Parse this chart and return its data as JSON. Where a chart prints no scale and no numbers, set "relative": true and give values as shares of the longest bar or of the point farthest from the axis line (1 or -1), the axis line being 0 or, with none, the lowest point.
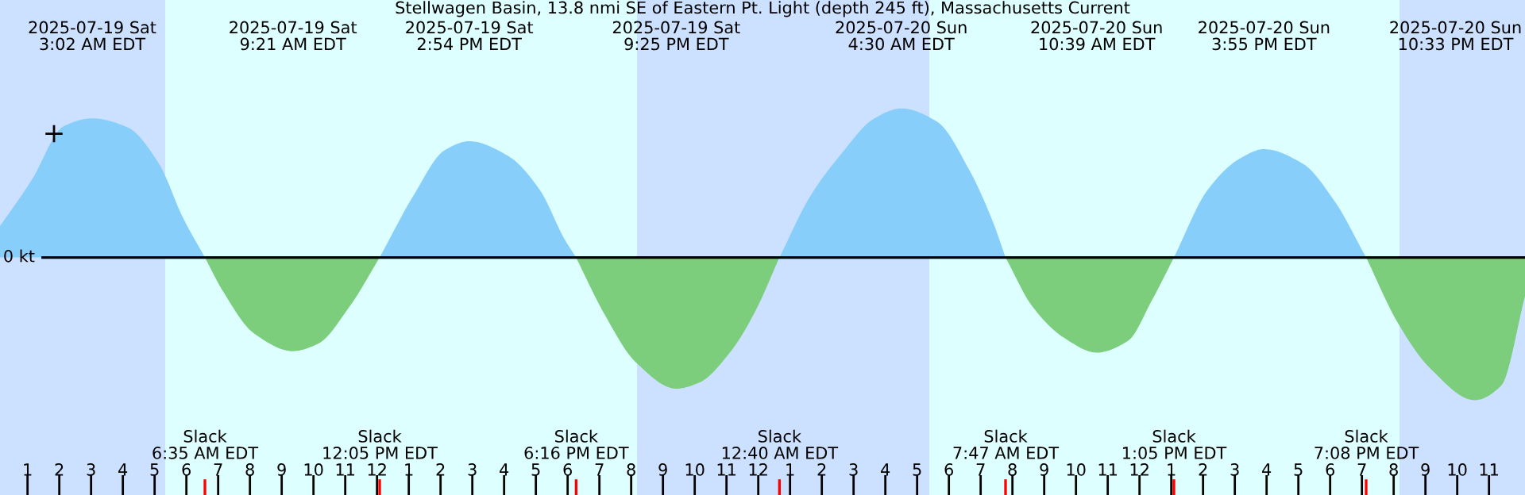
{
  "chart_data": {
    "type": "area",
    "relative": true,
    "title": "Stellwagen Basin, 13.8 nmi SE of Eastern Pt. Light (depth 245 ft), Massachusetts Current",
    "xlim": [
      "2025-07-19T00:08",
      "2025-07-21T00:08"
    ],
    "xticks": [
      {
        "value": "2025-07-19T01:00",
        "label": "1"
      },
      {
        "value": "2025-07-19T02:00",
        "label": "2"
      },
      {
        "value": "2025-07-19T03:00",
        "label": "3"
      },
      {
        "value": "2025-07-19T04:00",
        "label": "4"
      },
      {
        "value": "2025-07-19T05:00",
        "label": "5"
      },
      {
        "value": "2025-07-19T06:00",
        "label": "6"
      },
      {
        "value": "2025-07-19T07:00",
        "label": "7"
      },
      {
        "value": "2025-07-19T08:00",
        "label": "8"
      },
      {
        "value": "2025-07-19T09:00",
        "label": "9"
      },
      {
        "value": "2025-07-19T10:00",
        "label": "10"
      },
      {
        "value": "2025-07-19T11:00",
        "label": "11"
      },
      {
        "value": "2025-07-19T12:00",
        "label": "12"
      },
      {
        "value": "2025-07-19T13:00",
        "label": "1"
      },
      {
        "value": "2025-07-19T14:00",
        "label": "2"
      },
      {
        "value": "2025-07-19T15:00",
        "label": "3"
      },
      {
        "value": "2025-07-19T16:00",
        "label": "4"
      },
      {
        "value": "2025-07-19T17:00",
        "label": "5"
      },
      {
        "value": "2025-07-19T18:00",
        "label": "6"
      },
      {
        "value": "2025-07-19T19:00",
        "label": "7"
      },
      {
        "value": "2025-07-19T20:00",
        "label": "8"
      },
      {
        "value": "2025-07-19T21:00",
        "label": "9"
      },
      {
        "value": "2025-07-19T22:00",
        "label": "10"
      },
      {
        "value": "2025-07-19T23:00",
        "label": "11"
      },
      {
        "value": "2025-07-20T00:00",
        "label": "12"
      },
      {
        "value": "2025-07-20T01:00",
        "label": "1"
      },
      {
        "value": "2025-07-20T02:00",
        "label": "2"
      },
      {
        "value": "2025-07-20T03:00",
        "label": "3"
      },
      {
        "value": "2025-07-20T04:00",
        "label": "4"
      },
      {
        "value": "2025-07-20T05:00",
        "label": "5"
      },
      {
        "value": "2025-07-20T06:00",
        "label": "6"
      },
      {
        "value": "2025-07-20T07:00",
        "label": "7"
      },
      {
        "value": "2025-07-20T08:00",
        "label": "8"
      },
      {
        "value": "2025-07-20T09:00",
        "label": "9"
      },
      {
        "value": "2025-07-20T10:00",
        "label": "10"
      },
      {
        "value": "2025-07-20T11:00",
        "label": "11"
      },
      {
        "value": "2025-07-20T12:00",
        "label": "12"
      },
      {
        "value": "2025-07-20T13:00",
        "label": "1"
      },
      {
        "value": "2025-07-20T14:00",
        "label": "2"
      },
      {
        "value": "2025-07-20T15:00",
        "label": "3"
      },
      {
        "value": "2025-07-20T16:00",
        "label": "4"
      },
      {
        "value": "2025-07-20T17:00",
        "label": "5"
      },
      {
        "value": "2025-07-20T18:00",
        "label": "6"
      },
      {
        "value": "2025-07-20T19:00",
        "label": "7"
      },
      {
        "value": "2025-07-20T20:00",
        "label": "8"
      },
      {
        "value": "2025-07-20T21:00",
        "label": "9"
      },
      {
        "value": "2025-07-20T22:00",
        "label": "10"
      },
      {
        "value": "2025-07-20T23:00",
        "label": "11"
      }
    ],
    "x": [
      "2025-07-19T00:08",
      "2025-07-19T01:08",
      "2025-07-19T02:08",
      "2025-07-19T03:02",
      "2025-07-19T04:08",
      "2025-07-19T05:08",
      "2025-07-19T05:53",
      "2025-07-19T06:35",
      "2025-07-19T07:08",
      "2025-07-19T08:08",
      "2025-07-19T09:21",
      "2025-07-19T10:08",
      "2025-07-19T11:08",
      "2025-07-19T12:05",
      "2025-07-19T13:08",
      "2025-07-19T14:08",
      "2025-07-19T14:54",
      "2025-07-19T16:08",
      "2025-07-19T17:08",
      "2025-07-19T17:53",
      "2025-07-19T18:16",
      "2025-07-19T19:08",
      "2025-07-19T20:08",
      "2025-07-19T21:25",
      "2025-07-19T22:08",
      "2025-07-19T23:08",
      "2025-07-19T23:53",
      "2025-07-20T00:40",
      "2025-07-20T01:38",
      "2025-07-20T02:38",
      "2025-07-20T03:38",
      "2025-07-20T04:30",
      "2025-07-20T05:38",
      "2025-07-20T06:38",
      "2025-07-20T07:23",
      "2025-07-20T07:47",
      "2025-07-20T08:38",
      "2025-07-20T09:38",
      "2025-07-20T10:39",
      "2025-07-20T11:38",
      "2025-07-20T12:23",
      "2025-07-20T13:05",
      "2025-07-20T14:08",
      "2025-07-20T15:08",
      "2025-07-20T15:55",
      "2025-07-20T17:08",
      "2025-07-20T18:08",
      "2025-07-20T19:08",
      "2025-07-20T20:08",
      "2025-07-20T21:08",
      "2025-07-20T22:33",
      "2025-07-20T23:23",
      "2025-07-21T00:08"
    ],
    "series": [
      {
        "color": "#87cefa",
        "values": [
          0.21,
          0.52,
          0.88,
          0.933,
          0.875,
          0.63,
          0.27,
          0,
          null,
          null,
          null,
          null,
          null,
          0,
          0.41,
          0.72,
          0.78,
          0.68,
          0.45,
          0.13,
          0,
          null,
          null,
          null,
          null,
          null,
          null,
          0,
          0.41,
          0.7,
          0.93,
          1,
          0.91,
          0.59,
          0.24,
          0,
          null,
          null,
          null,
          null,
          null,
          0,
          0.45,
          0.66,
          0.727,
          0.63,
          0.38,
          0,
          null,
          null,
          null,
          null,
          null
        ]
      },
      {
        "color": "#7ccd7c",
        "values": [
          null,
          null,
          null,
          null,
          null,
          null,
          null,
          0,
          -0.22,
          -0.51,
          -0.628,
          -0.58,
          -0.33,
          0,
          null,
          null,
          null,
          null,
          null,
          null,
          0,
          -0.37,
          -0.7,
          -0.88,
          -0.84,
          -0.63,
          -0.37,
          0,
          null,
          null,
          null,
          null,
          null,
          null,
          null,
          0,
          -0.33,
          -0.54,
          -0.638,
          -0.56,
          -0.29,
          0,
          null,
          null,
          null,
          null,
          null,
          0,
          -0.44,
          -0.74,
          -0.957,
          -0.86,
          -0.26
        ]
      },
      {
        "type": "scatter",
        "marker": "cross",
        "color": "#000000",
        "x": [
          "2025-07-19T01:50"
        ],
        "values": [
          0.83
        ]
      }
    ],
    "ref_lines": [
      {
        "axis": "y",
        "value": 0,
        "label": "0 kt",
        "color": "#000000"
      },
      {
        "axis": "x",
        "value": "2025-07-19T06:35",
        "label": "Slack\n6:35 AM EDT",
        "color": "#ff0000"
      },
      {
        "axis": "x",
        "value": "2025-07-19T12:05",
        "label": "Slack\n12:05 PM EDT",
        "color": "#ff0000"
      },
      {
        "axis": "x",
        "value": "2025-07-19T18:16",
        "label": "Slack\n6:16 PM EDT",
        "color": "#ff0000"
      },
      {
        "axis": "x",
        "value": "2025-07-20T00:40",
        "label": "Slack\n12:40 AM EDT",
        "color": "#ff0000"
      },
      {
        "axis": "x",
        "value": "2025-07-20T07:47",
        "label": "Slack\n7:47 AM EDT",
        "color": "#ff0000"
      },
      {
        "axis": "x",
        "value": "2025-07-20T13:05",
        "label": "Slack\n1:05 PM EDT",
        "color": "#ff0000"
      },
      {
        "axis": "x",
        "value": "2025-07-20T19:08",
        "label": "Slack\n7:08 PM EDT",
        "color": "#ff0000"
      }
    ],
    "bands": [
      {
        "axis": "x",
        "from": "2025-07-19T00:08",
        "to": "2025-07-19T05:20",
        "color": "#cce0ff"
      },
      {
        "axis": "x",
        "from": "2025-07-19T20:11",
        "to": "2025-07-20T05:23",
        "color": "#cce0ff"
      },
      {
        "axis": "x",
        "from": "2025-07-20T20:11",
        "to": "2025-07-21T00:08",
        "color": "#cce0ff"
      }
    ],
    "annotations": [
      "2025-07-19 Sat\n3:02 AM EDT",
      "2025-07-19 Sat\n9:21 AM EDT",
      "2025-07-19 Sat\n2:54 PM EDT",
      "2025-07-19 Sat\n9:25 PM EDT",
      "2025-07-20 Sun\n4:30 AM EDT",
      "2025-07-20 Sun\n10:39 AM EDT",
      "2025-07-20 Sun\n3:55 PM EDT",
      "2025-07-20 Sun\n10:33 PM EDT"
    ]
  }
}
